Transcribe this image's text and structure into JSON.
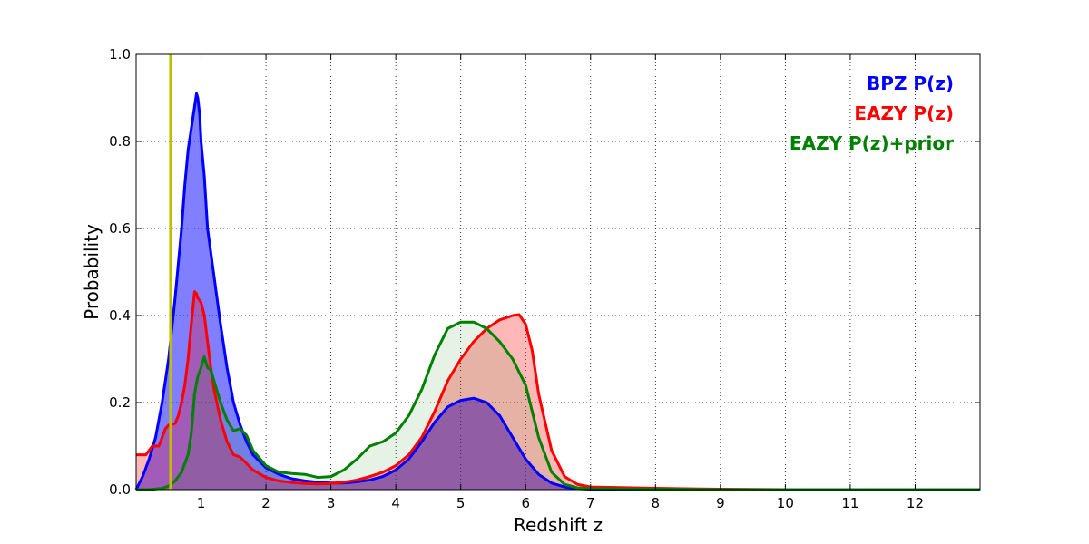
{
  "chart_data": {
    "type": "area",
    "xlabel": "Redshift z",
    "ylabel": "Probability",
    "xlim": [
      0,
      13
    ],
    "ylim": [
      0,
      1.0
    ],
    "xticks": [
      1,
      2,
      3,
      4,
      5,
      6,
      7,
      8,
      9,
      10,
      11,
      12
    ],
    "xtick_labels": [
      "1",
      "2",
      "3",
      "4",
      "5",
      "6",
      "7",
      "8",
      "9",
      "10",
      "11",
      "12"
    ],
    "yticks": [
      0,
      0.2,
      0.4,
      0.6,
      0.8,
      1.0
    ],
    "ytick_labels": [
      "0.0",
      "0.2",
      "0.4",
      "0.6",
      "0.8",
      "1.0"
    ],
    "grid": true,
    "legend_position": "top-right",
    "reference_line": {
      "x": 0.53,
      "color": "#bfbf00"
    },
    "series": [
      {
        "name": "BPZ P(z)",
        "color": "#0000ff",
        "fill": "#0000ff",
        "fill_opacity": 0.5,
        "x": [
          0,
          0.1,
          0.2,
          0.3,
          0.4,
          0.5,
          0.6,
          0.7,
          0.75,
          0.8,
          0.85,
          0.9,
          0.93,
          0.95,
          0.98,
          1.0,
          1.05,
          1.1,
          1.2,
          1.3,
          1.4,
          1.5,
          1.6,
          1.7,
          1.8,
          2.0,
          2.2,
          2.4,
          2.6,
          2.8,
          3.0,
          3.2,
          3.4,
          3.6,
          3.8,
          4.0,
          4.2,
          4.4,
          4.6,
          4.8,
          5.0,
          5.2,
          5.4,
          5.6,
          5.8,
          6.0,
          6.2,
          6.4,
          6.6,
          6.8,
          7.0,
          8,
          9,
          10,
          11,
          12,
          13
        ],
        "y": [
          0.0,
          0.03,
          0.07,
          0.12,
          0.2,
          0.3,
          0.44,
          0.6,
          0.7,
          0.78,
          0.83,
          0.88,
          0.91,
          0.9,
          0.86,
          0.8,
          0.72,
          0.6,
          0.49,
          0.38,
          0.28,
          0.2,
          0.15,
          0.11,
          0.08,
          0.05,
          0.035,
          0.025,
          0.02,
          0.017,
          0.015,
          0.015,
          0.018,
          0.022,
          0.03,
          0.045,
          0.07,
          0.11,
          0.155,
          0.19,
          0.205,
          0.21,
          0.2,
          0.17,
          0.12,
          0.07,
          0.035,
          0.015,
          0.006,
          0.002,
          0.001,
          0.001,
          0.0,
          0.0,
          0.0,
          0.0,
          0.0
        ]
      },
      {
        "name": "EAZY P(z)",
        "color": "#ff0000",
        "fill": "#ff0000",
        "fill_opacity": 0.28,
        "x": [
          0,
          0.1,
          0.15,
          0.2,
          0.25,
          0.3,
          0.35,
          0.4,
          0.45,
          0.5,
          0.55,
          0.6,
          0.65,
          0.7,
          0.75,
          0.8,
          0.85,
          0.9,
          0.93,
          0.95,
          1.0,
          1.05,
          1.1,
          1.15,
          1.2,
          1.3,
          1.4,
          1.5,
          1.6,
          1.7,
          1.8,
          2.0,
          2.2,
          2.4,
          2.6,
          2.8,
          3.0,
          3.2,
          3.4,
          3.6,
          3.8,
          4.0,
          4.2,
          4.4,
          4.6,
          4.8,
          5.0,
          5.2,
          5.4,
          5.6,
          5.8,
          5.9,
          6.0,
          6.1,
          6.2,
          6.4,
          6.6,
          6.8,
          7.0,
          8,
          9,
          10,
          11,
          12,
          13
        ],
        "y": [
          0.08,
          0.08,
          0.08,
          0.09,
          0.1,
          0.1,
          0.1,
          0.12,
          0.14,
          0.148,
          0.15,
          0.152,
          0.17,
          0.2,
          0.24,
          0.3,
          0.38,
          0.455,
          0.45,
          0.44,
          0.43,
          0.4,
          0.34,
          0.28,
          0.23,
          0.16,
          0.11,
          0.08,
          0.075,
          0.06,
          0.045,
          0.028,
          0.02,
          0.016,
          0.014,
          0.013,
          0.014,
          0.017,
          0.022,
          0.03,
          0.04,
          0.055,
          0.08,
          0.12,
          0.18,
          0.25,
          0.3,
          0.34,
          0.37,
          0.39,
          0.4,
          0.402,
          0.38,
          0.32,
          0.22,
          0.09,
          0.03,
          0.012,
          0.006,
          0.003,
          0.001,
          0.0,
          0.0,
          0.0,
          0.0
        ]
      },
      {
        "name": "EAZY P(z)+prior",
        "color": "#008000",
        "fill": "#008000",
        "fill_opacity": 0.1,
        "x": [
          0,
          0.2,
          0.4,
          0.5,
          0.6,
          0.7,
          0.8,
          0.85,
          0.9,
          0.95,
          1.0,
          1.05,
          1.1,
          1.15,
          1.2,
          1.3,
          1.4,
          1.5,
          1.6,
          1.7,
          1.8,
          2.0,
          2.2,
          2.4,
          2.6,
          2.8,
          3.0,
          3.2,
          3.4,
          3.6,
          3.8,
          4.0,
          4.2,
          4.4,
          4.6,
          4.8,
          5.0,
          5.2,
          5.4,
          5.6,
          5.8,
          6.0,
          6.2,
          6.4,
          6.6,
          6.8,
          7.0,
          8,
          9,
          10,
          11,
          12,
          13
        ],
        "y": [
          0.0,
          0.0,
          0.003,
          0.008,
          0.02,
          0.04,
          0.08,
          0.13,
          0.22,
          0.26,
          0.28,
          0.305,
          0.28,
          0.275,
          0.25,
          0.2,
          0.16,
          0.135,
          0.14,
          0.125,
          0.09,
          0.055,
          0.04,
          0.037,
          0.035,
          0.028,
          0.03,
          0.045,
          0.07,
          0.1,
          0.11,
          0.13,
          0.17,
          0.23,
          0.31,
          0.37,
          0.385,
          0.385,
          0.37,
          0.34,
          0.3,
          0.24,
          0.12,
          0.04,
          0.012,
          0.004,
          0.002,
          0.001,
          0.0,
          0.0,
          0.0,
          0.0,
          0.0
        ]
      }
    ]
  }
}
